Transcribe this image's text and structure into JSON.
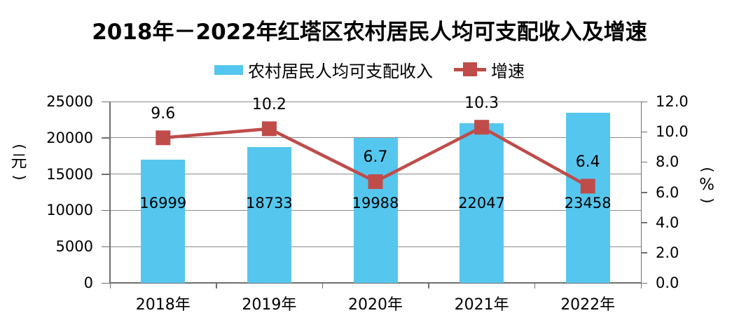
{
  "title": "2018年－2022年红塔区农村居民人均可支配收入及增速",
  "legend": {
    "bar_label": "农村居民人均可支配收入",
    "line_label": "增速"
  },
  "colors": {
    "bar": "#55C7EE",
    "line": "#BF4C49",
    "grid": "#8A8A8A",
    "axis": "#6F6F6F",
    "text": "#000000"
  },
  "chart_data": {
    "type": "bar",
    "subtype": "bar-line-combo",
    "title": "2018年－2022年红塔区农村居民人均可支配收入及增速",
    "categories": [
      "2018年",
      "2019年",
      "2020年",
      "2021年",
      "2022年"
    ],
    "series": [
      {
        "name": "农村居民人均可支配收入",
        "type": "bar",
        "axis": "left",
        "values": [
          16999,
          18733,
          19988,
          22047,
          23458
        ],
        "labels": [
          "16999",
          "18733",
          "19988",
          "22047",
          "23458"
        ]
      },
      {
        "name": "增速",
        "type": "line",
        "axis": "right",
        "values": [
          9.6,
          10.2,
          6.7,
          10.3,
          6.4
        ],
        "labels": [
          "9.6",
          "10.2",
          "6.7",
          "10.3",
          "6.4"
        ]
      }
    ],
    "left_axis": {
      "unit": "(元)",
      "min": 0,
      "max": 25000,
      "tick_values": [
        0,
        5000,
        10000,
        15000,
        20000,
        25000
      ],
      "tick_labels": [
        "0",
        "5000",
        "10000",
        "15000",
        "20000",
        "25000"
      ]
    },
    "right_axis": {
      "unit": "(%)",
      "min": 0,
      "max": 12,
      "tick_values": [
        0,
        2,
        4,
        6,
        8,
        10,
        12
      ],
      "tick_labels": [
        "0.0",
        "2.0",
        "4.0",
        "6.0",
        "8.0",
        "10.0",
        "12.0"
      ]
    },
    "grid": true,
    "legend_position": "top"
  }
}
